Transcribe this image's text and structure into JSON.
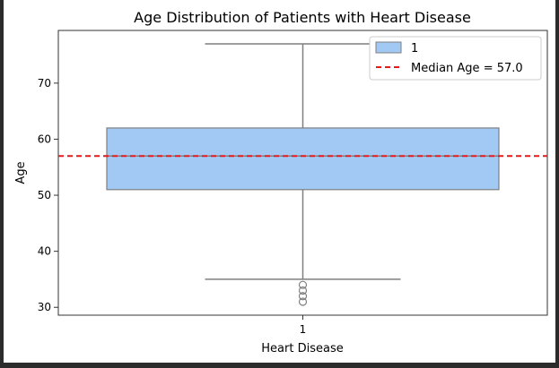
{
  "chart_data": {
    "type": "boxplot",
    "title": "Age Distribution of Patients with Heart Disease",
    "xlabel": "Heart Disease",
    "ylabel": "Age",
    "categories": [
      "1"
    ],
    "ylim": [
      28.6,
      79.4
    ],
    "yticks": [
      30,
      40,
      50,
      60,
      70
    ],
    "series": [
      {
        "name": "1",
        "min": 35,
        "q1": 51,
        "median": 57,
        "q3": 62,
        "max": 77,
        "outliers": [
          34,
          33,
          32,
          31
        ],
        "color": "#a1c9f4"
      }
    ],
    "reference_line": {
      "label": "Median Age = 57.0",
      "value": 57.0,
      "color": "#e41a1c",
      "style": "dashed"
    },
    "legend": {
      "placement": "top-right",
      "entries": [
        "1",
        "Median Age = 57.0"
      ]
    },
    "grid": false
  }
}
